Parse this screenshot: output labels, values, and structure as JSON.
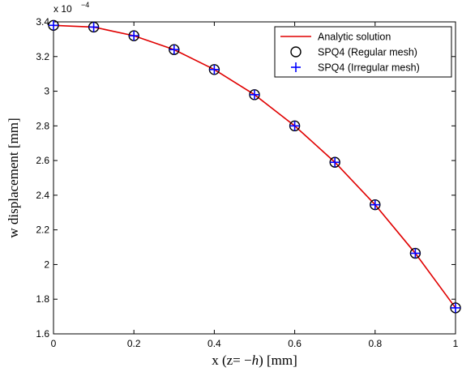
{
  "chart_data": {
    "type": "line",
    "title": "",
    "xlabel_prefix": "x (z= −",
    "xlabel_italic": "h",
    "xlabel_suffix": ") [mm]",
    "ylabel": "w displacement [mm]",
    "y_multiplier_base": "x 10",
    "y_multiplier_exponent": "−4",
    "xlim": [
      0,
      1
    ],
    "ylim": [
      1.6,
      3.4
    ],
    "x_ticks": [
      0,
      0.2,
      0.4,
      0.6,
      0.8,
      1
    ],
    "x_tick_labels": [
      "0",
      "0.2",
      "0.4",
      "0.6",
      "0.8",
      "1"
    ],
    "y_ticks": [
      1.6,
      1.8,
      2,
      2.2,
      2.4,
      2.6,
      2.8,
      3,
      3.2,
      3.4
    ],
    "y_tick_labels": [
      "1.6",
      "1.8",
      "2",
      "2.2",
      "2.4",
      "2.6",
      "2.8",
      "3",
      "3.2",
      "3.4"
    ],
    "grid": false,
    "legend_position": "top-right",
    "series": [
      {
        "name": "Analytic solution",
        "style": "line",
        "color": "#e00000",
        "x": [
          0,
          0.1,
          0.2,
          0.3,
          0.4,
          0.5,
          0.6,
          0.7,
          0.8,
          0.9,
          1.0
        ],
        "y": [
          3.38,
          3.37,
          3.32,
          3.24,
          3.125,
          2.98,
          2.8,
          2.59,
          2.345,
          2.065,
          1.75
        ]
      },
      {
        "name": "SPQ4 (Regular mesh)",
        "style": "circle",
        "color": "#000000",
        "x": [
          0,
          0.1,
          0.2,
          0.3,
          0.4,
          0.5,
          0.6,
          0.7,
          0.8,
          0.9,
          1.0
        ],
        "y": [
          3.38,
          3.37,
          3.32,
          3.24,
          3.125,
          2.98,
          2.8,
          2.59,
          2.345,
          2.065,
          1.75
        ]
      },
      {
        "name": "SPQ4 (Irregular mesh)",
        "style": "plus",
        "color": "#0000ff",
        "x": [
          0,
          0.1,
          0.2,
          0.3,
          0.4,
          0.5,
          0.6,
          0.7,
          0.8,
          0.9,
          1.0
        ],
        "y": [
          3.38,
          3.37,
          3.32,
          3.24,
          3.125,
          2.98,
          2.8,
          2.59,
          2.345,
          2.065,
          1.75
        ]
      }
    ]
  }
}
